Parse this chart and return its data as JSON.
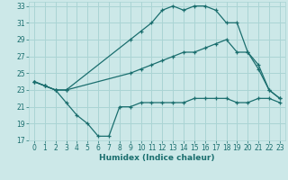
{
  "bg_color": "#cce8e8",
  "grid_color": "#aad4d4",
  "line_color": "#1a6e6e",
  "xlabel": "Humidex (Indice chaleur)",
  "xlim": [
    -0.5,
    23.5
  ],
  "ylim": [
    17,
    33.5
  ],
  "yticks": [
    17,
    19,
    21,
    23,
    25,
    27,
    29,
    31,
    33
  ],
  "xticks": [
    0,
    1,
    2,
    3,
    4,
    5,
    6,
    7,
    8,
    9,
    10,
    11,
    12,
    13,
    14,
    15,
    16,
    17,
    18,
    19,
    20,
    21,
    22,
    23
  ],
  "series": [
    {
      "x": [
        0,
        1,
        2,
        3,
        9,
        10,
        11,
        12,
        13,
        14,
        15,
        16,
        17,
        18,
        19,
        20,
        21,
        22,
        23
      ],
      "y": [
        24,
        23.5,
        23,
        23,
        29,
        30,
        31,
        32.5,
        33,
        32.5,
        33,
        33,
        32.5,
        31,
        31,
        27.5,
        25.5,
        23,
        22
      ]
    },
    {
      "x": [
        0,
        1,
        2,
        3,
        9,
        10,
        11,
        12,
        13,
        14,
        15,
        16,
        17,
        18,
        19,
        20,
        21,
        22,
        23
      ],
      "y": [
        24,
        23.5,
        23,
        23,
        25,
        25.5,
        26,
        26.5,
        27,
        27.5,
        27.5,
        28,
        28.5,
        29,
        27.5,
        27.5,
        26,
        23,
        22
      ]
    },
    {
      "x": [
        0,
        1,
        2,
        3,
        4,
        5,
        6,
        7,
        8,
        9,
        10,
        11,
        12,
        13,
        14,
        15,
        16,
        17,
        18,
        19,
        20,
        21,
        22,
        23
      ],
      "y": [
        24,
        23.5,
        23,
        21.5,
        20,
        19,
        17.5,
        17.5,
        21,
        21,
        21.5,
        21.5,
        21.5,
        21.5,
        21.5,
        22,
        22,
        22,
        22,
        21.5,
        21.5,
        22,
        22,
        21.5
      ]
    }
  ]
}
